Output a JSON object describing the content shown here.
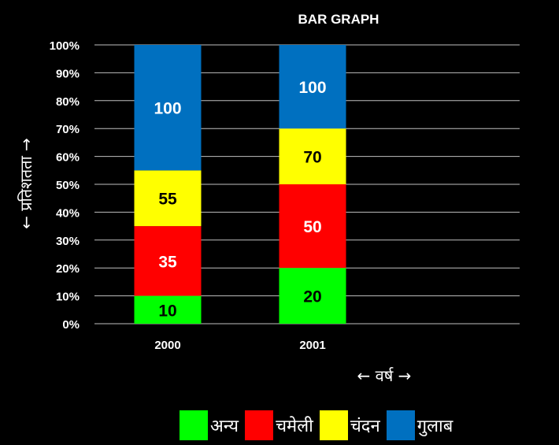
{
  "chart_data": {
    "type": "bar",
    "stacked": true,
    "title": "BAR GRAPH",
    "xlabel": "← वर्ष →",
    "ylabel": "← प्रतिशतता →",
    "categories": [
      "2000",
      "2001"
    ],
    "y_ticks": [
      "0%",
      "10%",
      "20%",
      "30%",
      "40%",
      "50%",
      "60%",
      "70%",
      "80%",
      "90%",
      "100%"
    ],
    "ylim": [
      0,
      100
    ],
    "grid": true,
    "legend_position": "bottom",
    "series": [
      {
        "name": "अन्य",
        "color": "#00ff00",
        "values": [
          10,
          20
        ],
        "labels": [
          "10",
          "20"
        ]
      },
      {
        "name": "चमेली",
        "color": "#ff0000",
        "values": [
          25,
          30
        ],
        "labels": [
          "35",
          "50"
        ]
      },
      {
        "name": "चंदन",
        "color": "#ffff00",
        "values": [
          20,
          20
        ],
        "labels": [
          "55",
          "70"
        ]
      },
      {
        "name": "गुलाब",
        "color": "#0070c0",
        "values": [
          45,
          30
        ],
        "labels": [
          "100",
          "100"
        ]
      }
    ]
  }
}
